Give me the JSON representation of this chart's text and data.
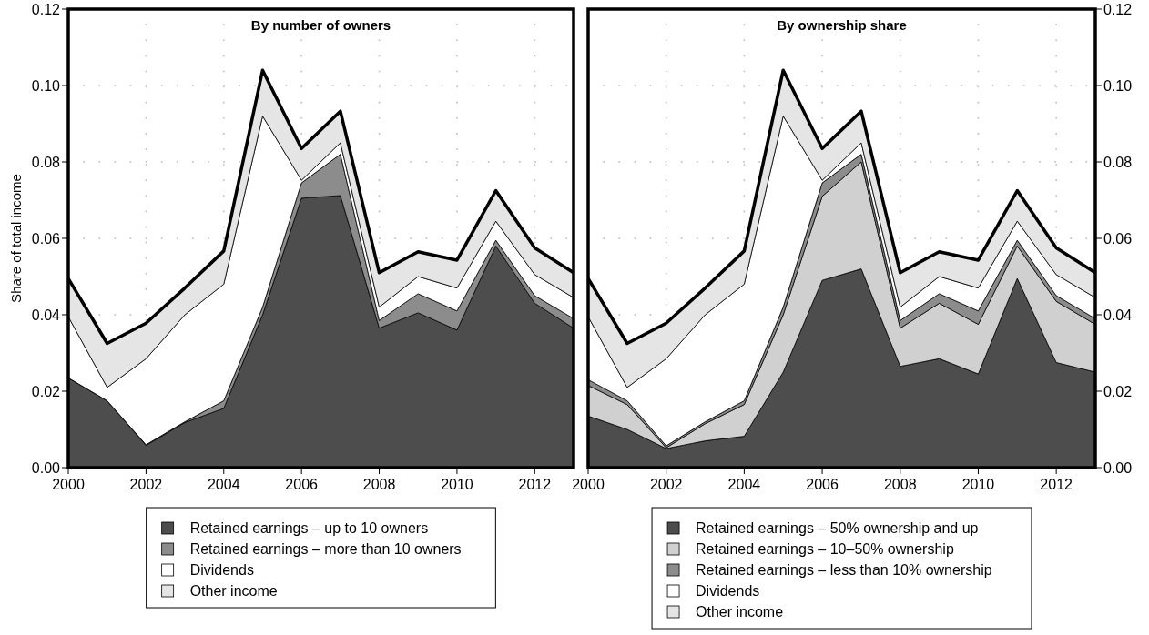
{
  "chart_data": [
    {
      "type": "area",
      "stacked": true,
      "title": "By number of owners",
      "ylabel": "Share of total income",
      "x": [
        2000,
        2001,
        2002,
        2003,
        2004,
        2005,
        2006,
        2007,
        2008,
        2009,
        2010,
        2011,
        2012,
        2013
      ],
      "xlim": [
        2000,
        2013
      ],
      "xticks": [
        2000,
        2002,
        2004,
        2006,
        2008,
        2010,
        2012
      ],
      "ylim": [
        0,
        0.12
      ],
      "yticks": [
        {
          "value": 0,
          "label": "0.00"
        },
        {
          "value": 0.02,
          "label": "0.02"
        },
        {
          "value": 0.04,
          "label": "0.04"
        },
        {
          "value": 0.06,
          "label": "0.06"
        },
        {
          "value": 0.08,
          "label": "0.08"
        },
        {
          "value": 0.1,
          "label": "0.10"
        },
        {
          "value": 0.12,
          "label": "0.12"
        }
      ],
      "grid": true,
      "legend": "bottom",
      "series": [
        {
          "name": "Retained earnings – up to 10 owners",
          "color": "#4d4d4d",
          "values": [
            0.0235,
            0.0175,
            0.0058,
            0.0118,
            0.0155,
            0.04,
            0.0705,
            0.0712,
            0.0365,
            0.0405,
            0.036,
            0.058,
            0.043,
            0.0365
          ]
        },
        {
          "name": "Retained earnings – more than 10 owners",
          "color": "#8c8c8c",
          "values": [
            0,
            0,
            0.0002,
            0.0002,
            0.002,
            0.002,
            0.004,
            0.0108,
            0.002,
            0.005,
            0.005,
            0.0015,
            0.002,
            0.0025
          ]
        },
        {
          "name": "Dividends",
          "color": "#ffffff",
          "values": [
            0.016,
            0.0035,
            0.0225,
            0.028,
            0.0305,
            0.05,
            0.0007,
            0.003,
            0.0035,
            0.0045,
            0.006,
            0.005,
            0.0055,
            0.0055
          ]
        },
        {
          "name": "Other income",
          "color": "#e5e5e5",
          "values": [
            0.01,
            0.0115,
            0.0093,
            0.007,
            0.0087,
            0.012,
            0.0083,
            0.0083,
            0.009,
            0.0065,
            0.0073,
            0.008,
            0.007,
            0.0065
          ]
        }
      ]
    },
    {
      "type": "area",
      "stacked": true,
      "title": "By ownership share",
      "x": [
        2000,
        2001,
        2002,
        2003,
        2004,
        2005,
        2006,
        2007,
        2008,
        2009,
        2010,
        2011,
        2012,
        2013
      ],
      "xlim": [
        2000,
        2013
      ],
      "xticks": [
        2000,
        2002,
        2004,
        2006,
        2008,
        2010,
        2012
      ],
      "y2lim": [
        0,
        0.12
      ],
      "y2ticks": [
        {
          "value": 0,
          "label": "0.00"
        },
        {
          "value": 0.02,
          "label": "0.02"
        },
        {
          "value": 0.04,
          "label": "0.04"
        },
        {
          "value": 0.06,
          "label": "0.06"
        },
        {
          "value": 0.08,
          "label": "0.08"
        },
        {
          "value": 0.1,
          "label": "0.10"
        },
        {
          "value": 0.12,
          "label": "0.12"
        }
      ],
      "grid": true,
      "legend": "bottom",
      "series": [
        {
          "name": "Retained earnings – 50% ownership and up",
          "color": "#4d4d4d",
          "axis": "y2",
          "values": [
            0.0135,
            0.01,
            0.005,
            0.007,
            0.0082,
            0.025,
            0.049,
            0.052,
            0.0265,
            0.0285,
            0.0245,
            0.0495,
            0.0275,
            0.025
          ]
        },
        {
          "name": "Retained earnings – 10–50% ownership",
          "color": "#d0d0d0",
          "axis": "y2",
          "values": [
            0.008,
            0.0065,
            0.0002,
            0.0045,
            0.0083,
            0.015,
            0.022,
            0.028,
            0.01,
            0.0145,
            0.013,
            0.0085,
            0.016,
            0.0125
          ]
        },
        {
          "name": "Retained earnings – less than 10% ownership",
          "color": "#8c8c8c",
          "axis": "y2",
          "values": [
            0.0015,
            0.001,
            0.0005,
            0.0005,
            0.001,
            0.002,
            0.0035,
            0.002,
            0.002,
            0.0025,
            0.0035,
            0.0015,
            0.0015,
            0.0015
          ]
        },
        {
          "name": "Dividends",
          "color": "#ffffff",
          "axis": "y2",
          "values": [
            0.0165,
            0.0035,
            0.0228,
            0.028,
            0.0305,
            0.05,
            0.0007,
            0.003,
            0.0035,
            0.0045,
            0.006,
            0.005,
            0.0055,
            0.0055
          ]
        },
        {
          "name": "Other income",
          "color": "#e5e5e5",
          "axis": "y2",
          "values": [
            0.01,
            0.0115,
            0.0093,
            0.007,
            0.0087,
            0.012,
            0.0083,
            0.0083,
            0.009,
            0.0065,
            0.0073,
            0.008,
            0.007,
            0.0065
          ]
        }
      ]
    }
  ]
}
